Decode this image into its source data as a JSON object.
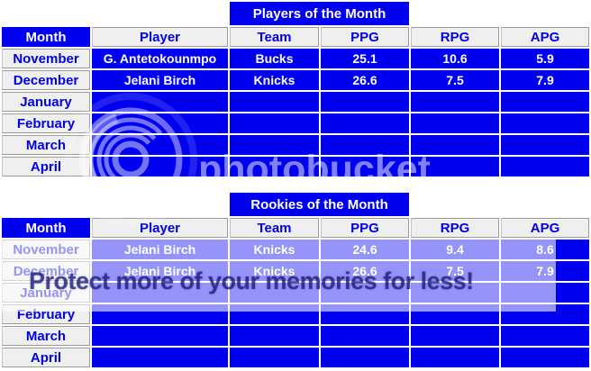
{
  "colors": {
    "cell_blue": "#0000f0",
    "header_text_blue": "#0000e6",
    "cell_gray": "#efefef",
    "white_text": "#ffffff",
    "watermark_band": "rgba(255,255,255,0.58)",
    "watermark_tagline_navy": "#1c1c7c"
  },
  "columns": [
    "Month",
    "Player",
    "Team",
    "PPG",
    "RPG",
    "APG"
  ],
  "tables": [
    {
      "title": "Players of the Month",
      "rows": [
        [
          "November",
          "G. Antetokounmpo",
          "Bucks",
          "25.1",
          "10.6",
          "5.9"
        ],
        [
          "December",
          "Jelani Birch",
          "Knicks",
          "26.6",
          "7.5",
          "7.9"
        ],
        [
          "January",
          "",
          "",
          "",
          "",
          ""
        ],
        [
          "February",
          "",
          "",
          "",
          "",
          ""
        ],
        [
          "March",
          "",
          "",
          "",
          "",
          ""
        ],
        [
          "April",
          "",
          "",
          "",
          "",
          ""
        ]
      ]
    },
    {
      "title": "Rookies of the Month",
      "rows": [
        [
          "November",
          "Jelani Birch",
          "Knicks",
          "24.6",
          "9.4",
          "8.6"
        ],
        [
          "December",
          "Jelani Birch",
          "Knicks",
          "26.6",
          "7.5",
          "7.9"
        ],
        [
          "January",
          "",
          "",
          "",
          "",
          ""
        ],
        [
          "February",
          "",
          "",
          "",
          "",
          ""
        ],
        [
          "March",
          "",
          "",
          "",
          "",
          ""
        ],
        [
          "April",
          "",
          "",
          "",
          "",
          ""
        ]
      ]
    }
  ],
  "watermark": {
    "logo_text": "photobucket",
    "tagline": "Protect more of your memories for less!"
  }
}
